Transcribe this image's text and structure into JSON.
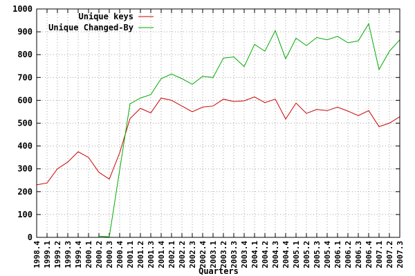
{
  "chart_data": {
    "type": "line",
    "title": "",
    "xlabel": "Quarters",
    "ylabel": "",
    "ylim": [
      0,
      1000
    ],
    "yticks": [
      0,
      100,
      200,
      300,
      400,
      500,
      600,
      700,
      800,
      900,
      1000
    ],
    "grid": true,
    "legend_placement": "top-left",
    "categories": [
      "1998.4",
      "1999.1",
      "1999.2",
      "1999.3",
      "1999.4",
      "2000.1",
      "2000.2",
      "2000.3",
      "2000.4",
      "2001.1",
      "2001.2",
      "2001.3",
      "2001.4",
      "2002.1",
      "2002.2",
      "2002.3",
      "2002.4",
      "2003.1",
      "2003.2",
      "2003.3",
      "2003.4",
      "2004.1",
      "2004.2",
      "2004.3",
      "2004.4",
      "2005.1",
      "2005.2",
      "2005.3",
      "2005.4",
      "2006.1",
      "2006.2",
      "2006.3",
      "2006.4",
      "2007.1",
      "2007.2",
      "2007.3"
    ],
    "series": [
      {
        "name": "Unique keys",
        "color": "#cc0000",
        "values": [
          230,
          238,
          300,
          330,
          375,
          350,
          285,
          255,
          370,
          520,
          565,
          545,
          610,
          600,
          575,
          550,
          570,
          575,
          605,
          595,
          598,
          615,
          590,
          605,
          518,
          588,
          543,
          560,
          555,
          570,
          553,
          533,
          555,
          485,
          500,
          528
        ]
      },
      {
        "name": "Unique Changed-By",
        "color": "#00aa00",
        "values": [
          null,
          null,
          null,
          null,
          null,
          null,
          5,
          2,
          295,
          585,
          610,
          625,
          695,
          715,
          695,
          670,
          705,
          700,
          785,
          790,
          748,
          845,
          815,
          905,
          782,
          872,
          840,
          875,
          865,
          880,
          852,
          860,
          935,
          735,
          815,
          865
        ]
      }
    ]
  }
}
